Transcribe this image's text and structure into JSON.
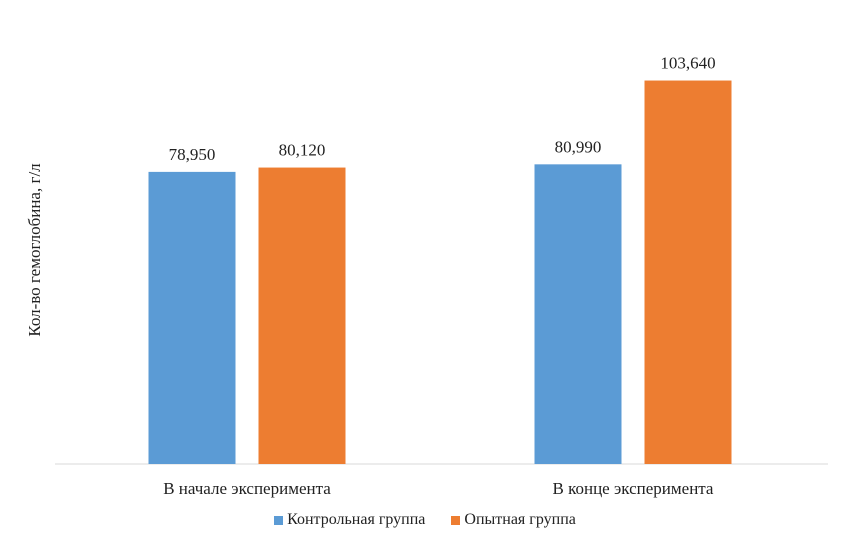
{
  "chart_data": {
    "type": "bar",
    "categories": [
      "В начале эксперимента",
      "В конце эксперимента"
    ],
    "series": [
      {
        "name": "Контрольная группа",
        "color": "#5B9BD5",
        "values": [
          78.95,
          80.99
        ],
        "labels": [
          "78,950",
          "80,990"
        ]
      },
      {
        "name": "Опытная группа",
        "color": "#ED7D31",
        "values": [
          80.12,
          103.64
        ],
        "labels": [
          "80,120",
          "103,640"
        ]
      }
    ],
    "title": "",
    "xlabel": "",
    "ylabel": "Кол-во гемоглобина, г/л",
    "ylim": [
      0,
      110
    ],
    "grid": false,
    "legend": "bottom"
  }
}
